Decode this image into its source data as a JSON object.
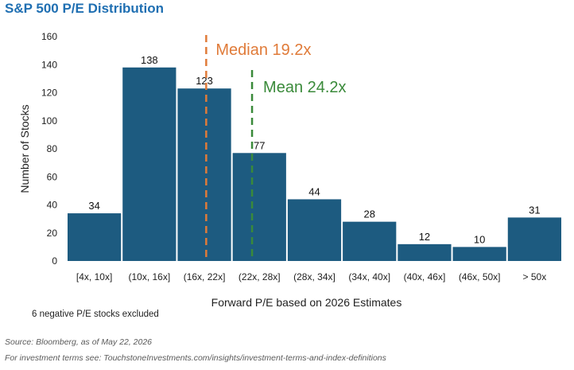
{
  "header": {
    "title": "S&P 500 P/E Distribution"
  },
  "chart_data": {
    "type": "bar",
    "categories": [
      "[4x, 10x]",
      "(10x, 16x]",
      "(16x, 22x]",
      "(22x, 28x]",
      "(28x, 34x]",
      "(34x, 40x]",
      "(40x, 46x]",
      "(46x, 50x]",
      "> 50x"
    ],
    "values": [
      34,
      138,
      123,
      77,
      44,
      28,
      12,
      10,
      31
    ],
    "xlabel": "Forward P/E based on 2026 Estimates",
    "ylabel": "Number of Stocks",
    "ylim": [
      0,
      160
    ],
    "yticks": [
      0,
      20,
      40,
      60,
      80,
      100,
      120,
      140,
      160
    ],
    "grid": false,
    "bar_color": "#1d5b80",
    "annotations": {
      "median": {
        "label": "Median 19.2x",
        "value": 19.2,
        "color": "#e07b39"
      },
      "mean": {
        "label": "Mean 24.2x",
        "value": 24.2,
        "color": "#3a8a3a"
      },
      "note": "6 negative P/E stocks excluded"
    }
  },
  "footer": {
    "source": "Source:  Bloomberg, as of May 22, 2026",
    "terms": "For investment terms see: TouchstoneInvestments.com/insights/investment-terms-and-index-definitions"
  }
}
